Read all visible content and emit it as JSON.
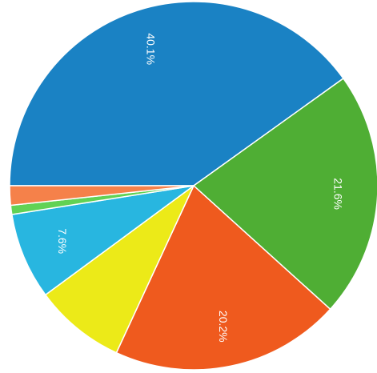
{
  "chart_data": {
    "type": "pie",
    "title": "",
    "slices": [
      {
        "value": 40.1,
        "label": "40.1%",
        "color": "#1a82c4"
      },
      {
        "value": 21.6,
        "label": "21.6%",
        "color": "#4fae34"
      },
      {
        "value": 20.2,
        "label": "20.2%",
        "color": "#ef5a1e"
      },
      {
        "value": 8.0,
        "label": "",
        "color": "#ecea18"
      },
      {
        "value": 7.6,
        "label": "7.6%",
        "color": "#28b6e0"
      },
      {
        "value": 0.8,
        "label": "",
        "color": "#61d255"
      },
      {
        "value": 1.7,
        "label": "",
        "color": "#f5814a"
      }
    ]
  }
}
